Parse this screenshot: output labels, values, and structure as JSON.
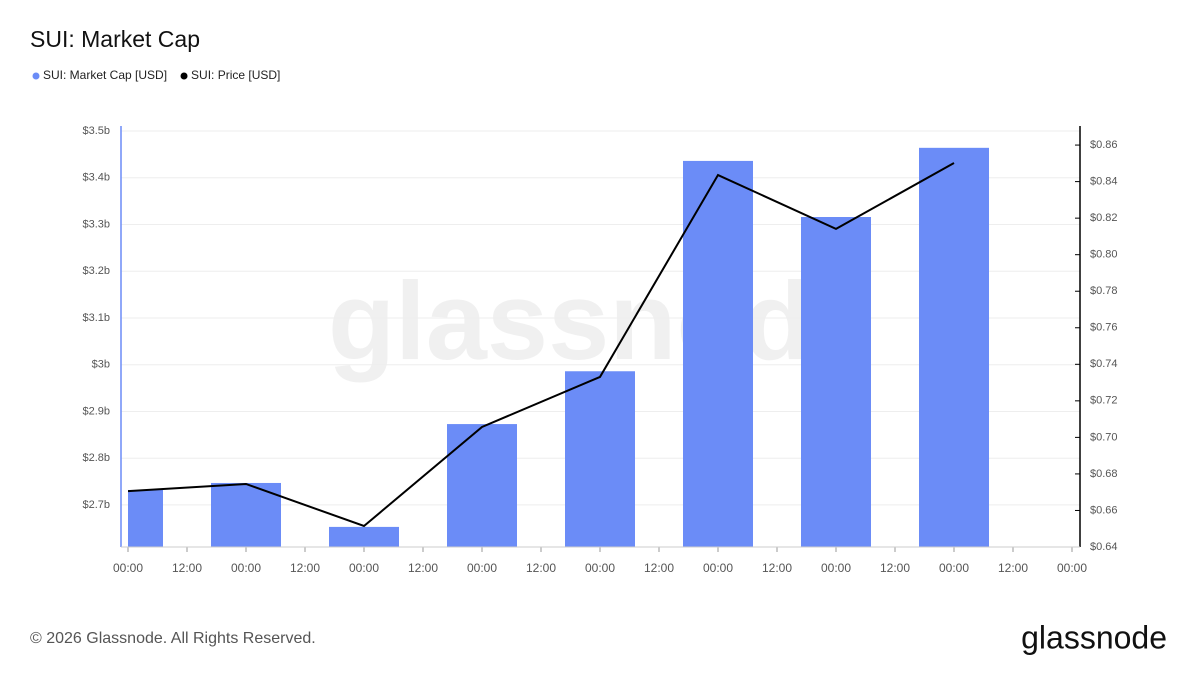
{
  "chart_data": {
    "type": "bar-line",
    "title": "SUI: Market Cap",
    "watermark": "glassnode",
    "footer": "© 2026 Glassnode. All Rights Reserved.",
    "logo": "glassnode",
    "x": [
      0,
      24,
      48,
      72,
      96,
      120,
      144,
      168
    ],
    "xlim": [
      0,
      192
    ],
    "xticks": [
      {
        "value": 0,
        "label": "00:00"
      },
      {
        "value": 12,
        "label": "12:00"
      },
      {
        "value": 24,
        "label": "00:00"
      },
      {
        "value": 36,
        "label": "12:00"
      },
      {
        "value": 48,
        "label": "00:00"
      },
      {
        "value": 60,
        "label": "12:00"
      },
      {
        "value": 72,
        "label": "00:00"
      },
      {
        "value": 84,
        "label": "12:00"
      },
      {
        "value": 96,
        "label": "00:00"
      },
      {
        "value": 108,
        "label": "12:00"
      },
      {
        "value": 120,
        "label": "00:00"
      },
      {
        "value": 132,
        "label": "12:00"
      },
      {
        "value": 144,
        "label": "00:00"
      },
      {
        "value": 156,
        "label": "12:00"
      },
      {
        "value": 168,
        "label": "00:00"
      },
      {
        "value": 180,
        "label": "12:00"
      },
      {
        "value": 192,
        "label": "00:00"
      }
    ],
    "ylim": [
      2.61,
      3.5
    ],
    "yticks": [
      {
        "value": 2.7,
        "label": "$2.7b"
      },
      {
        "value": 2.8,
        "label": "$2.8b"
      },
      {
        "value": 2.9,
        "label": "$2.9b"
      },
      {
        "value": 3.0,
        "label": "$3b"
      },
      {
        "value": 3.1,
        "label": "$3.1b"
      },
      {
        "value": 3.2,
        "label": "$3.2b"
      },
      {
        "value": 3.3,
        "label": "$3.3b"
      },
      {
        "value": 3.4,
        "label": "$3.4b"
      },
      {
        "value": 3.5,
        "label": "$3.5b"
      }
    ],
    "y2lim": [
      0.64,
      0.8677
    ],
    "y2ticks": [
      {
        "value": 0.64,
        "label": "$0.64"
      },
      {
        "value": 0.66,
        "label": "$0.66"
      },
      {
        "value": 0.68,
        "label": "$0.68"
      },
      {
        "value": 0.7,
        "label": "$0.70"
      },
      {
        "value": 0.72,
        "label": "$0.72"
      },
      {
        "value": 0.74,
        "label": "$0.74"
      },
      {
        "value": 0.76,
        "label": "$0.76"
      },
      {
        "value": 0.78,
        "label": "$0.78"
      },
      {
        "value": 0.8,
        "label": "$0.80"
      },
      {
        "value": 0.82,
        "label": "$0.82"
      },
      {
        "value": 0.84,
        "label": "$0.84"
      },
      {
        "value": 0.86,
        "label": "$0.86"
      }
    ],
    "grid": true,
    "series": [
      {
        "name": "SUI: Market Cap [USD]",
        "color": "#6b8cf7",
        "kind": "bar",
        "values": [
          2.732,
          2.747,
          2.653,
          2.873,
          2.986,
          3.436,
          3.316,
          3.464
        ]
      },
      {
        "name": "SUI: Price [USD]",
        "color": "#000000",
        "kind": "line",
        "axis": "y2",
        "values": [
          0.6706,
          0.6745,
          0.6515,
          0.7057,
          0.7331,
          0.8436,
          0.8141,
          0.8502
        ]
      }
    ]
  }
}
